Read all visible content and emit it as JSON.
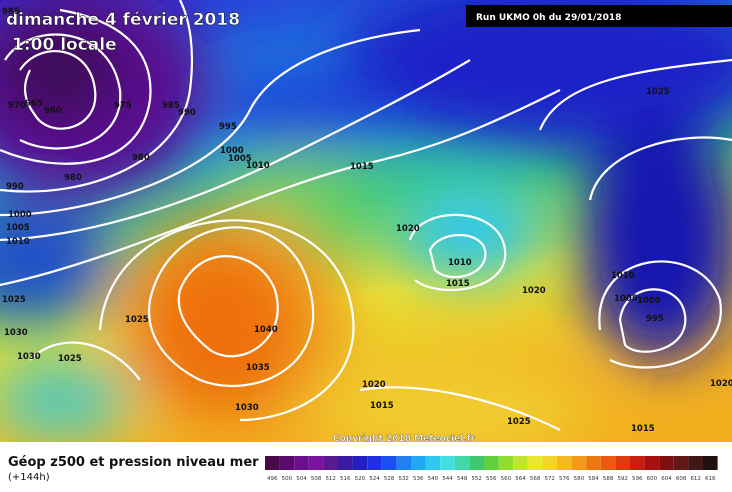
{
  "header": {
    "date": "dimanche 4 février 2018",
    "time": "1:00 locale",
    "run": "Run UKMO 0h du 29/01/2018"
  },
  "isobar_labels": [
    "985",
    "970",
    "965",
    "960",
    "975",
    "985",
    "990",
    "995",
    "980",
    "980",
    "1000",
    "1005",
    "1010",
    "990",
    "1000",
    "1005",
    "1010",
    "1015",
    "1020",
    "1010",
    "1015",
    "1020",
    "1025",
    "1025",
    "1040",
    "1030",
    "1030",
    "1025",
    "1035",
    "1030",
    "1020",
    "1015",
    "1025",
    "1015",
    "1025",
    "1010",
    "1005",
    "1000",
    "995",
    "1020"
  ],
  "copyright": "Copyright 2018 Meteociel.fr",
  "footer": {
    "title": "Géop z500 et pression niveau mer",
    "lead": "(+144h)"
  },
  "colorbar": [
    "496",
    "500",
    "504",
    "508",
    "512",
    "516",
    "520",
    "524",
    "528",
    "532",
    "536",
    "540",
    "544",
    "548",
    "552",
    "556",
    "560",
    "564",
    "568",
    "572",
    "576",
    "580",
    "584",
    "588",
    "592",
    "596",
    "600",
    "604",
    "608",
    "612",
    "616"
  ]
}
